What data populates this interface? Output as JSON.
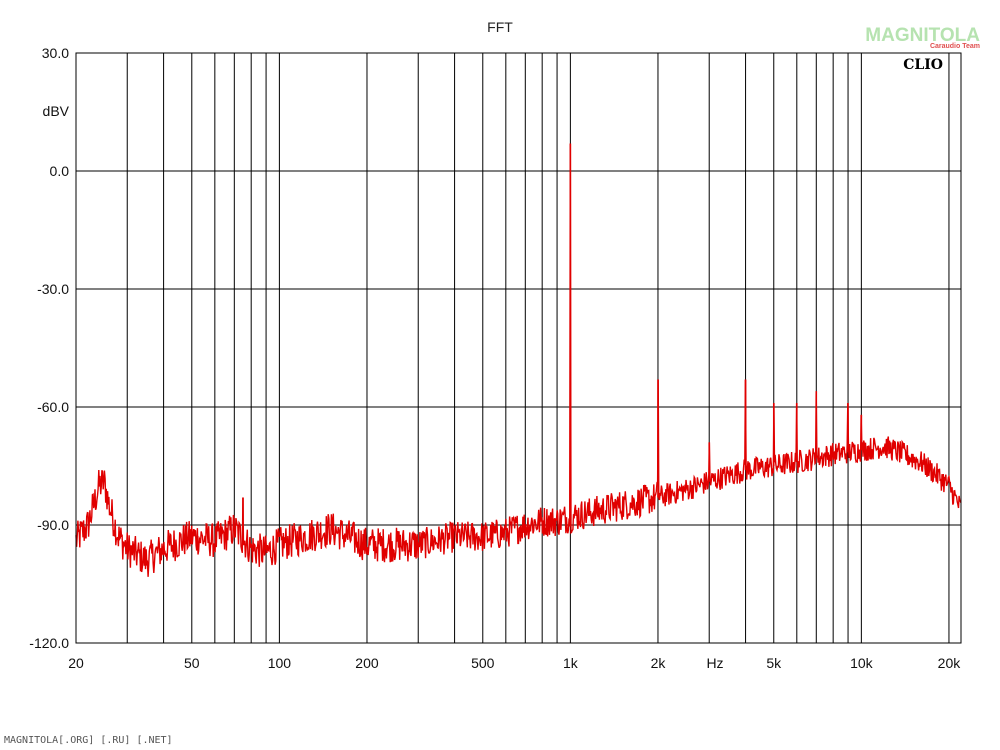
{
  "chart_data": {
    "type": "line",
    "title": "FFT",
    "xlabel": "Hz",
    "ylabel": "dBV",
    "x_scale": "log",
    "xlim": [
      20,
      22000
    ],
    "ylim": [
      -120,
      30
    ],
    "grid": true,
    "x_ticks": [
      {
        "value": 20,
        "label": "20"
      },
      {
        "value": 50,
        "label": "50"
      },
      {
        "value": 100,
        "label": "100"
      },
      {
        "value": 200,
        "label": "200"
      },
      {
        "value": 500,
        "label": "500"
      },
      {
        "value": 1000,
        "label": "1k"
      },
      {
        "value": 2000,
        "label": "2k"
      },
      {
        "value": 5000,
        "label": "5k"
      },
      {
        "value": 10000,
        "label": "10k"
      },
      {
        "value": 20000,
        "label": "20k"
      }
    ],
    "y_ticks": [
      {
        "value": 30,
        "label": "30.0"
      },
      {
        "value": 0,
        "label": "0.0"
      },
      {
        "value": -30,
        "label": "-30.0"
      },
      {
        "value": -60,
        "label": "-60.0"
      },
      {
        "value": -90,
        "label": "-90.0"
      },
      {
        "value": -120,
        "label": "-120.0"
      }
    ],
    "series": [
      {
        "color": "#e00000",
        "noise_floor": [
          [
            20,
            -94
          ],
          [
            22,
            -90
          ],
          [
            23,
            -85
          ],
          [
            24,
            -80
          ],
          [
            25,
            -79
          ],
          [
            26,
            -85
          ],
          [
            28,
            -93
          ],
          [
            30,
            -96
          ],
          [
            35,
            -99
          ],
          [
            40,
            -96
          ],
          [
            50,
            -93
          ],
          [
            60,
            -94
          ],
          [
            70,
            -91
          ],
          [
            80,
            -96
          ],
          [
            90,
            -97
          ],
          [
            100,
            -95
          ],
          [
            150,
            -91
          ],
          [
            200,
            -95
          ],
          [
            300,
            -95
          ],
          [
            400,
            -93
          ],
          [
            500,
            -93
          ],
          [
            600,
            -92
          ],
          [
            700,
            -90
          ],
          [
            800,
            -89
          ],
          [
            900,
            -89
          ],
          [
            1000,
            -88
          ],
          [
            1500,
            -85
          ],
          [
            2000,
            -83
          ],
          [
            2500,
            -81
          ],
          [
            3000,
            -79
          ],
          [
            4000,
            -76
          ],
          [
            5000,
            -75
          ],
          [
            6000,
            -74
          ],
          [
            7000,
            -73
          ],
          [
            8000,
            -72
          ],
          [
            10000,
            -71
          ],
          [
            12000,
            -70
          ],
          [
            14000,
            -72
          ],
          [
            16000,
            -74
          ],
          [
            18000,
            -77
          ],
          [
            20000,
            -80
          ],
          [
            22000,
            -86
          ]
        ],
        "peaks": [
          [
            1000,
            7
          ],
          [
            2000,
            -53
          ],
          [
            3000,
            -69
          ],
          [
            4000,
            -53
          ],
          [
            5000,
            -59
          ],
          [
            6000,
            -59
          ],
          [
            7000,
            -56
          ],
          [
            9000,
            -59
          ],
          [
            10000,
            -62
          ],
          [
            75,
            -83
          ]
        ]
      }
    ]
  },
  "brand_label": "CLIO",
  "watermark": {
    "main": "MAGNITOLA",
    "sub": "Caraudio Team"
  },
  "footer_text": "MAGNITOLA[.ORG] [.RU] [.NET]"
}
